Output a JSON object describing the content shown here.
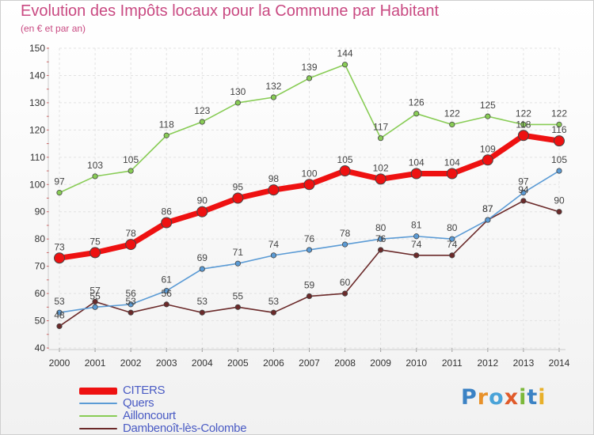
{
  "title": "Evolution des Impôts locaux pour la Commune par Habitant",
  "subtitle": "(en € et par an)",
  "logo": {
    "text": "Proxiti",
    "letters": [
      {
        "ch": "P",
        "color": "#3b82c4"
      },
      {
        "ch": "r",
        "color": "#e8912a"
      },
      {
        "ch": "o",
        "color": "#4aa3d8"
      },
      {
        "ch": "x",
        "color": "#e05a2a"
      },
      {
        "ch": "i",
        "color": "#7cb83a"
      },
      {
        "ch": "t",
        "color": "#3b82c4"
      },
      {
        "ch": "i",
        "color": "#e8b02a"
      }
    ]
  },
  "chart_data": {
    "type": "line",
    "title": "Evolution des Impôts locaux pour la Commune par Habitant",
    "subtitle": "(en € et par an)",
    "x": [
      "2000",
      "2001",
      "2002",
      "2003",
      "2004",
      "2005",
      "2006",
      "2007",
      "2008",
      "2009",
      "2010",
      "2011",
      "2012",
      "2013",
      "2014"
    ],
    "ylim": [
      40,
      150
    ],
    "yticks": [
      40,
      50,
      60,
      70,
      80,
      90,
      100,
      110,
      120,
      130,
      140,
      150
    ],
    "grid": true,
    "legend_position": "bottom-left",
    "series": [
      {
        "name": "CITERS",
        "color": "#ee1111",
        "values": [
          73,
          75,
          78,
          86,
          90,
          95,
          98,
          100,
          105,
          102,
          104,
          104,
          109,
          118,
          116
        ],
        "labels": [
          "73",
          "75",
          "78",
          "86",
          "90",
          "95",
          "98",
          "100",
          "105",
          "102",
          "104",
          "104",
          "109",
          "118",
          "116"
        ]
      },
      {
        "name": "Quers",
        "color": "#5b9bd5",
        "values": [
          53,
          55,
          56,
          61,
          69,
          71,
          74,
          76,
          78,
          80,
          81,
          80,
          87,
          97,
          105
        ],
        "labels": [
          "53",
          "55",
          "56",
          "61",
          "69",
          "71",
          "74",
          "76",
          "78",
          "80",
          "81",
          "80",
          "87",
          "97",
          "105"
        ]
      },
      {
        "name": "Ailloncourt",
        "color": "#88cc55",
        "values": [
          97,
          103,
          105,
          118,
          123,
          130,
          132,
          139,
          144,
          117,
          126,
          122,
          125,
          122,
          122
        ],
        "labels": [
          "97",
          "103",
          "105",
          "118",
          "123",
          "130",
          "132",
          "139",
          "144",
          "117",
          "126",
          "122",
          "125",
          "122",
          "122"
        ]
      },
      {
        "name": "Dambenoît-lès-Colombe",
        "color": "#6b2a2a",
        "values": [
          48,
          57,
          53,
          56,
          53,
          55,
          53,
          59,
          60,
          76,
          74,
          74,
          87,
          94,
          90
        ],
        "labels": [
          "48",
          "57",
          "53",
          "56",
          "53",
          "55",
          "53",
          "59",
          "60",
          "76",
          "74",
          "74",
          "87",
          "94",
          "90"
        ]
      }
    ]
  }
}
